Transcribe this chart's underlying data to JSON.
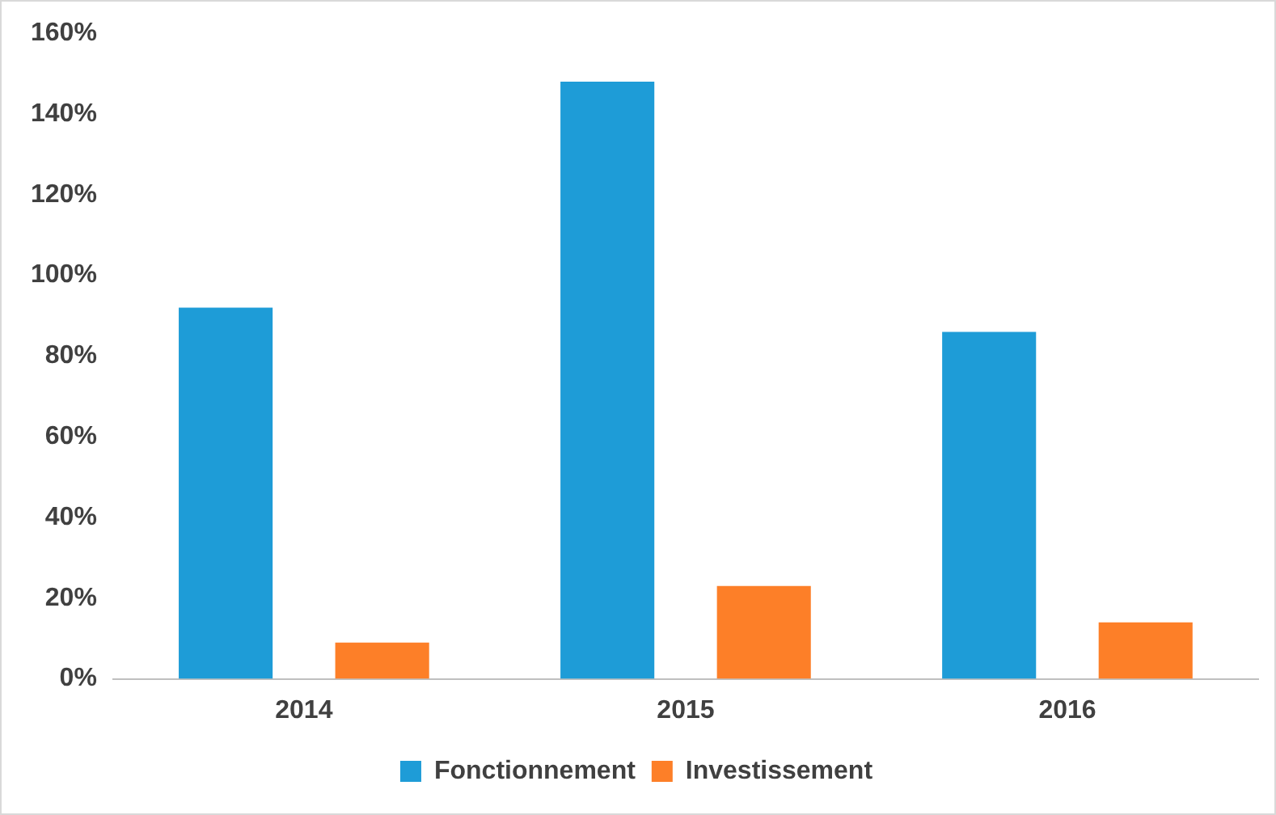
{
  "chart_data": {
    "type": "bar",
    "categories": [
      "2014",
      "2015",
      "2016"
    ],
    "series": [
      {
        "name": "Fonctionnement",
        "color": "#1e9cd7",
        "values": [
          92,
          148,
          86
        ]
      },
      {
        "name": "Investissement",
        "color": "#fd7f28",
        "values": [
          9,
          23,
          14
        ]
      }
    ],
    "ylim": [
      0,
      160
    ],
    "yticks": [
      {
        "value": 0,
        "label": "0%"
      },
      {
        "value": 20,
        "label": "20%"
      },
      {
        "value": 40,
        "label": "40%"
      },
      {
        "value": 60,
        "label": "60%"
      },
      {
        "value": 80,
        "label": "80%"
      },
      {
        "value": 100,
        "label": "100%"
      },
      {
        "value": 120,
        "label": "120%"
      },
      {
        "value": 140,
        "label": "140%"
      },
      {
        "value": 160,
        "label": "160%"
      }
    ],
    "grid": false,
    "legend": "bottom"
  }
}
